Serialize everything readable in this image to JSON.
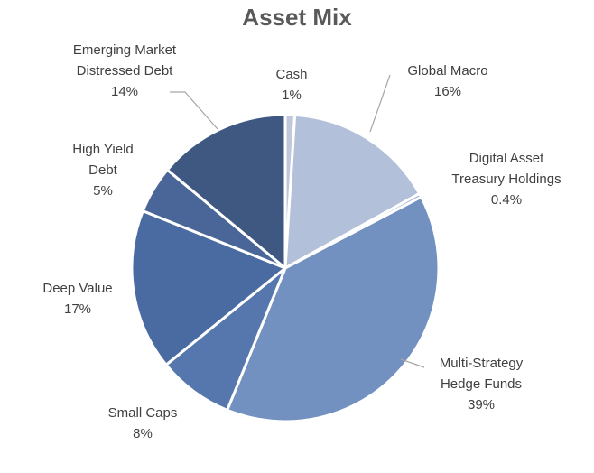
{
  "chart_data": {
    "type": "pie",
    "title": "Asset Mix",
    "slices": [
      {
        "name": "Cash",
        "value": 1,
        "value_label": "1%",
        "color": "#BFC8DC",
        "label_lines": [
          "Cash",
          "1%"
        ]
      },
      {
        "name": "Global Macro",
        "value": 16,
        "value_label": "16%",
        "color": "#B2C0DA",
        "label_lines": [
          "Global Macro",
          "16%"
        ]
      },
      {
        "name": "Digital Asset Treasury Holdings",
        "value": 0.4,
        "value_label": "0.4%",
        "color": "#9EAFD0",
        "label_lines": [
          "Digital Asset",
          "Treasury Holdings",
          "0.4%"
        ]
      },
      {
        "name": "Multi-Strategy Hedge Funds",
        "value": 39,
        "value_label": "39%",
        "color": "#7290C0",
        "label_lines": [
          "Multi-Strategy",
          "Hedge Funds",
          "39%"
        ]
      },
      {
        "name": "Small Caps",
        "value": 8,
        "value_label": "8%",
        "color": "#5677AE",
        "label_lines": [
          "Small Caps",
          "8%"
        ]
      },
      {
        "name": "Deep Value",
        "value": 17,
        "value_label": "17%",
        "color": "#4A6BA2",
        "label_lines": [
          "Deep Value",
          "17%"
        ]
      },
      {
        "name": "High Yield Debt",
        "value": 5,
        "value_label": "5%",
        "color": "#4A6698",
        "label_lines": [
          "High Yield",
          "Debt",
          "5%"
        ]
      },
      {
        "name": "Emerging Market Distressed Debt",
        "value": 14,
        "value_label": "14%",
        "color": "#3E5882",
        "label_lines": [
          "Emerging Market",
          "Distressed Debt",
          "14%"
        ]
      }
    ],
    "legend": "none",
    "start_angle": "top, clockwise"
  }
}
